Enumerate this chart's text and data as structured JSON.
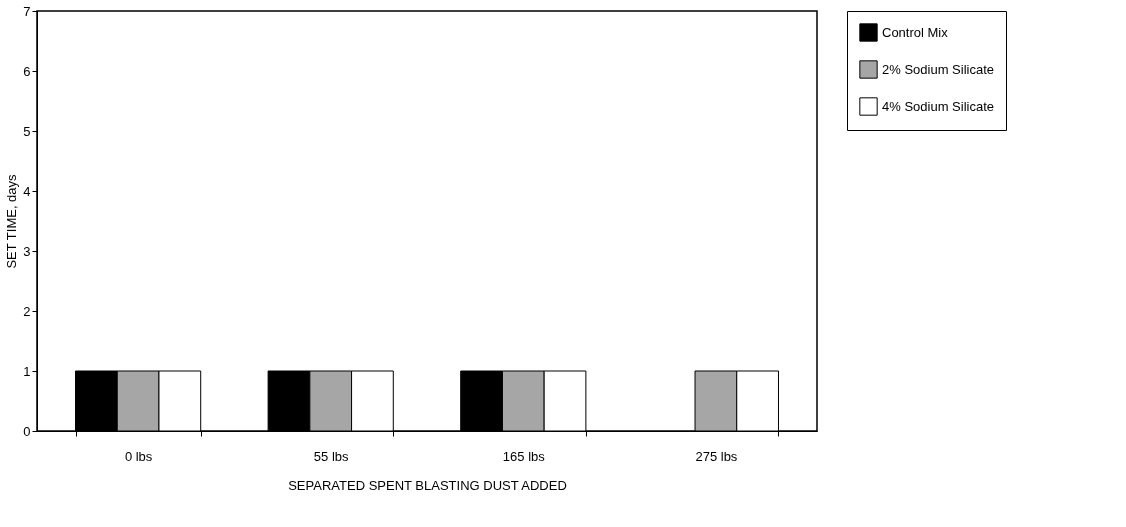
{
  "chart_data": {
    "type": "bar",
    "xlabel": "SEPARATED SPENT BLASTING DUST ADDED",
    "ylabel": "SET TIME, days",
    "categories": [
      "0  lbs",
      "55  lbs",
      "165  lbs",
      "275  lbs"
    ],
    "series": [
      {
        "name": "Control  Mix",
        "color": "#000000",
        "values": [
          1,
          1,
          1,
          null
        ]
      },
      {
        "name": "2% Sodium Silicate",
        "color": "#a6a6a6",
        "values": [
          1,
          1,
          1,
          1
        ]
      },
      {
        "name": "4% Sodium Silicate",
        "color": "#ffffff",
        "values": [
          1,
          1,
          1,
          1
        ]
      }
    ],
    "ylim": [
      0,
      7
    ],
    "yticks": [
      0,
      1,
      2,
      3,
      4,
      5,
      6,
      7
    ],
    "grid": false,
    "legend": "right"
  }
}
